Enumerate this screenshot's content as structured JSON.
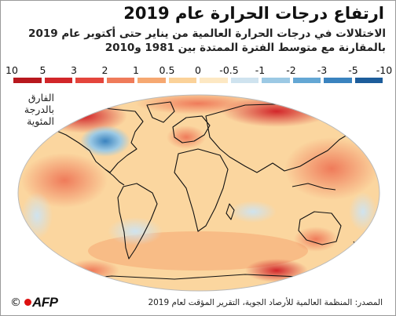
{
  "title": "ارتفاع درجات الحرارة عام 2019",
  "subtitle_line1": "الاختلالات في درجات الحرارة العالمية من يناير حتى أكتوبر عام 2019",
  "subtitle_line2": "بالمقارنة مع متوسط الفترة الممتدة بين 1981 و2010",
  "legend": [
    {
      "label": "10",
      "color": "#b8181e"
    },
    {
      "label": "5",
      "color": "#d2262a"
    },
    {
      "label": "3",
      "color": "#e4453c"
    },
    {
      "label": "2",
      "color": "#ef7b5a"
    },
    {
      "label": "1",
      "color": "#f6a871"
    },
    {
      "label": "0.5",
      "color": "#fbd299"
    },
    {
      "label": "0",
      "color": "#fde8c3"
    },
    {
      "label": "-0.5",
      "color": "#cfe3ef"
    },
    {
      "label": "-1",
      "color": "#9cc9e4"
    },
    {
      "label": "-2",
      "color": "#64a7d4"
    },
    {
      "label": "-3",
      "color": "#3a83bf"
    },
    {
      "label": "-5",
      "color": "#1d5d9b"
    },
    {
      "label": "-10",
      "color": ""
    }
  ],
  "diff_label": "الفارق بالدرجة المئوية",
  "source": "المصدر: المنظمة العالمية للأرصاد الجوية، التقرير المؤقت لعام 2019",
  "copyright": "©",
  "agency": "AFP",
  "colors": {
    "map_base": "#fbd69f",
    "ocean_warm": "#f7b77c",
    "hot": "#d2262a",
    "cold": "#64a7d4",
    "coast": "#111111"
  }
}
